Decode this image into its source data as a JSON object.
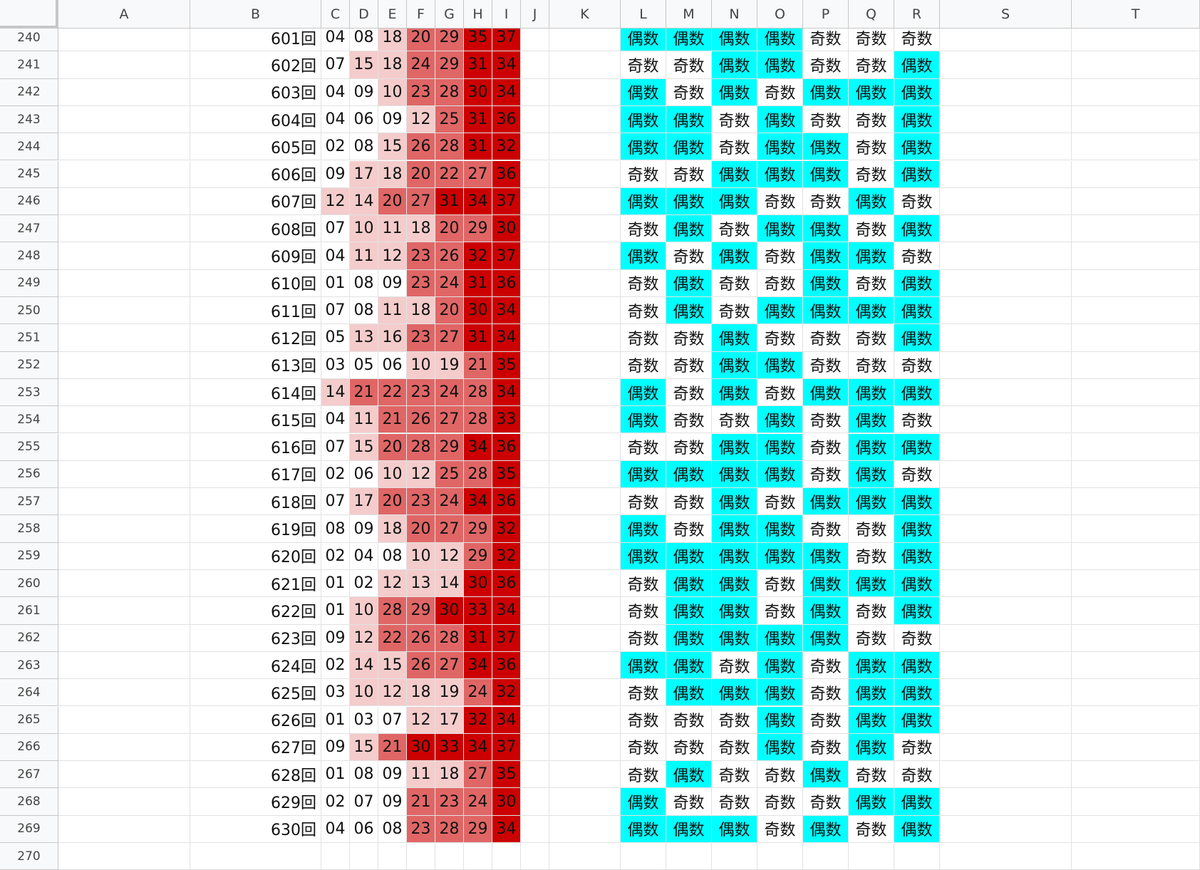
{
  "columns": [
    "A",
    "B",
    "C",
    "D",
    "E",
    "F",
    "G",
    "H",
    "I",
    "J",
    "K",
    "L",
    "M",
    "N",
    "O",
    "P",
    "Q",
    "R",
    "S",
    "T"
  ],
  "colors": {
    "light": "#f4cccc",
    "medium": "#e06666",
    "dark": "#cc0000",
    "even": "#00ffff",
    "odd": "#ffffff"
  },
  "labels": {
    "even": "偶数",
    "odd": "奇数"
  },
  "rows": [
    {
      "row": "240",
      "draw": "601回",
      "nums": [
        "04",
        "08",
        "18",
        "20",
        "29",
        "35",
        "37"
      ],
      "parity": [
        "偶数",
        "偶数",
        "偶数",
        "偶数",
        "奇数",
        "奇数",
        "奇数"
      ]
    },
    {
      "row": "241",
      "draw": "602回",
      "nums": [
        "07",
        "15",
        "18",
        "24",
        "29",
        "31",
        "34"
      ],
      "parity": [
        "奇数",
        "奇数",
        "偶数",
        "偶数",
        "奇数",
        "奇数",
        "偶数"
      ]
    },
    {
      "row": "242",
      "draw": "603回",
      "nums": [
        "04",
        "09",
        "10",
        "23",
        "28",
        "30",
        "34"
      ],
      "parity": [
        "偶数",
        "奇数",
        "偶数",
        "奇数",
        "偶数",
        "偶数",
        "偶数"
      ]
    },
    {
      "row": "243",
      "draw": "604回",
      "nums": [
        "04",
        "06",
        "09",
        "12",
        "25",
        "31",
        "36"
      ],
      "parity": [
        "偶数",
        "偶数",
        "奇数",
        "偶数",
        "奇数",
        "奇数",
        "偶数"
      ]
    },
    {
      "row": "244",
      "draw": "605回",
      "nums": [
        "02",
        "08",
        "15",
        "26",
        "28",
        "31",
        "32"
      ],
      "parity": [
        "偶数",
        "偶数",
        "奇数",
        "偶数",
        "偶数",
        "奇数",
        "偶数"
      ]
    },
    {
      "row": "245",
      "draw": "606回",
      "nums": [
        "09",
        "17",
        "18",
        "20",
        "22",
        "27",
        "36"
      ],
      "parity": [
        "奇数",
        "奇数",
        "偶数",
        "偶数",
        "偶数",
        "奇数",
        "偶数"
      ]
    },
    {
      "row": "246",
      "draw": "607回",
      "nums": [
        "12",
        "14",
        "20",
        "27",
        "31",
        "34",
        "37"
      ],
      "parity": [
        "偶数",
        "偶数",
        "偶数",
        "奇数",
        "奇数",
        "偶数",
        "奇数"
      ]
    },
    {
      "row": "247",
      "draw": "608回",
      "nums": [
        "07",
        "10",
        "11",
        "18",
        "20",
        "29",
        "30"
      ],
      "parity": [
        "奇数",
        "偶数",
        "奇数",
        "偶数",
        "偶数",
        "奇数",
        "偶数"
      ]
    },
    {
      "row": "248",
      "draw": "609回",
      "nums": [
        "04",
        "11",
        "12",
        "23",
        "26",
        "32",
        "37"
      ],
      "parity": [
        "偶数",
        "奇数",
        "偶数",
        "奇数",
        "偶数",
        "偶数",
        "奇数"
      ]
    },
    {
      "row": "249",
      "draw": "610回",
      "nums": [
        "01",
        "08",
        "09",
        "23",
        "24",
        "31",
        "36"
      ],
      "parity": [
        "奇数",
        "偶数",
        "奇数",
        "奇数",
        "偶数",
        "奇数",
        "偶数"
      ]
    },
    {
      "row": "250",
      "draw": "611回",
      "nums": [
        "07",
        "08",
        "11",
        "18",
        "20",
        "30",
        "34"
      ],
      "parity": [
        "奇数",
        "偶数",
        "奇数",
        "偶数",
        "偶数",
        "偶数",
        "偶数"
      ]
    },
    {
      "row": "251",
      "draw": "612回",
      "nums": [
        "05",
        "13",
        "16",
        "23",
        "27",
        "31",
        "34"
      ],
      "parity": [
        "奇数",
        "奇数",
        "偶数",
        "奇数",
        "奇数",
        "奇数",
        "偶数"
      ]
    },
    {
      "row": "252",
      "draw": "613回",
      "nums": [
        "03",
        "05",
        "06",
        "10",
        "19",
        "21",
        "35"
      ],
      "parity": [
        "奇数",
        "奇数",
        "偶数",
        "偶数",
        "奇数",
        "奇数",
        "奇数"
      ]
    },
    {
      "row": "253",
      "draw": "614回",
      "nums": [
        "14",
        "21",
        "22",
        "23",
        "24",
        "28",
        "34"
      ],
      "parity": [
        "偶数",
        "奇数",
        "偶数",
        "奇数",
        "偶数",
        "偶数",
        "偶数"
      ]
    },
    {
      "row": "254",
      "draw": "615回",
      "nums": [
        "04",
        "11",
        "21",
        "26",
        "27",
        "28",
        "33"
      ],
      "parity": [
        "偶数",
        "奇数",
        "奇数",
        "偶数",
        "奇数",
        "偶数",
        "奇数"
      ]
    },
    {
      "row": "255",
      "draw": "616回",
      "nums": [
        "07",
        "15",
        "20",
        "28",
        "29",
        "34",
        "36"
      ],
      "parity": [
        "奇数",
        "奇数",
        "偶数",
        "偶数",
        "奇数",
        "偶数",
        "偶数"
      ]
    },
    {
      "row": "256",
      "draw": "617回",
      "nums": [
        "02",
        "06",
        "10",
        "12",
        "25",
        "28",
        "35"
      ],
      "parity": [
        "偶数",
        "偶数",
        "偶数",
        "偶数",
        "奇数",
        "偶数",
        "奇数"
      ]
    },
    {
      "row": "257",
      "draw": "618回",
      "nums": [
        "07",
        "17",
        "20",
        "23",
        "24",
        "34",
        "36"
      ],
      "parity": [
        "奇数",
        "奇数",
        "偶数",
        "奇数",
        "偶数",
        "偶数",
        "偶数"
      ]
    },
    {
      "row": "258",
      "draw": "619回",
      "nums": [
        "08",
        "09",
        "18",
        "20",
        "27",
        "29",
        "32"
      ],
      "parity": [
        "偶数",
        "奇数",
        "偶数",
        "偶数",
        "奇数",
        "奇数",
        "偶数"
      ]
    },
    {
      "row": "259",
      "draw": "620回",
      "nums": [
        "02",
        "04",
        "08",
        "10",
        "12",
        "29",
        "32"
      ],
      "parity": [
        "偶数",
        "偶数",
        "偶数",
        "偶数",
        "偶数",
        "奇数",
        "偶数"
      ]
    },
    {
      "row": "260",
      "draw": "621回",
      "nums": [
        "01",
        "02",
        "12",
        "13",
        "14",
        "30",
        "36"
      ],
      "parity": [
        "奇数",
        "偶数",
        "偶数",
        "奇数",
        "偶数",
        "偶数",
        "偶数"
      ]
    },
    {
      "row": "261",
      "draw": "622回",
      "nums": [
        "01",
        "10",
        "28",
        "29",
        "30",
        "33",
        "34"
      ],
      "parity": [
        "奇数",
        "偶数",
        "偶数",
        "奇数",
        "偶数",
        "奇数",
        "偶数"
      ]
    },
    {
      "row": "262",
      "draw": "623回",
      "nums": [
        "09",
        "12",
        "22",
        "26",
        "28",
        "31",
        "37"
      ],
      "parity": [
        "奇数",
        "偶数",
        "偶数",
        "偶数",
        "偶数",
        "奇数",
        "奇数"
      ]
    },
    {
      "row": "263",
      "draw": "624回",
      "nums": [
        "02",
        "14",
        "15",
        "26",
        "27",
        "34",
        "36"
      ],
      "parity": [
        "偶数",
        "偶数",
        "奇数",
        "偶数",
        "奇数",
        "偶数",
        "偶数"
      ]
    },
    {
      "row": "264",
      "draw": "625回",
      "nums": [
        "03",
        "10",
        "12",
        "18",
        "19",
        "24",
        "32"
      ],
      "parity": [
        "奇数",
        "偶数",
        "偶数",
        "偶数",
        "奇数",
        "偶数",
        "偶数"
      ]
    },
    {
      "row": "265",
      "draw": "626回",
      "nums": [
        "01",
        "03",
        "07",
        "12",
        "17",
        "32",
        "34"
      ],
      "parity": [
        "奇数",
        "奇数",
        "奇数",
        "偶数",
        "奇数",
        "偶数",
        "偶数"
      ]
    },
    {
      "row": "266",
      "draw": "627回",
      "nums": [
        "09",
        "15",
        "21",
        "30",
        "33",
        "34",
        "37"
      ],
      "parity": [
        "奇数",
        "奇数",
        "奇数",
        "偶数",
        "奇数",
        "偶数",
        "奇数"
      ]
    },
    {
      "row": "267",
      "draw": "628回",
      "nums": [
        "01",
        "08",
        "09",
        "11",
        "18",
        "27",
        "35"
      ],
      "parity": [
        "奇数",
        "偶数",
        "奇数",
        "奇数",
        "偶数",
        "奇数",
        "奇数"
      ]
    },
    {
      "row": "268",
      "draw": "629回",
      "nums": [
        "02",
        "07",
        "09",
        "21",
        "23",
        "24",
        "30"
      ],
      "parity": [
        "偶数",
        "奇数",
        "奇数",
        "奇数",
        "奇数",
        "偶数",
        "偶数"
      ]
    },
    {
      "row": "269",
      "draw": "630回",
      "nums": [
        "04",
        "06",
        "08",
        "23",
        "28",
        "29",
        "34"
      ],
      "parity": [
        "偶数",
        "偶数",
        "偶数",
        "奇数",
        "偶数",
        "奇数",
        "偶数"
      ]
    }
  ],
  "last_row_label": "270"
}
